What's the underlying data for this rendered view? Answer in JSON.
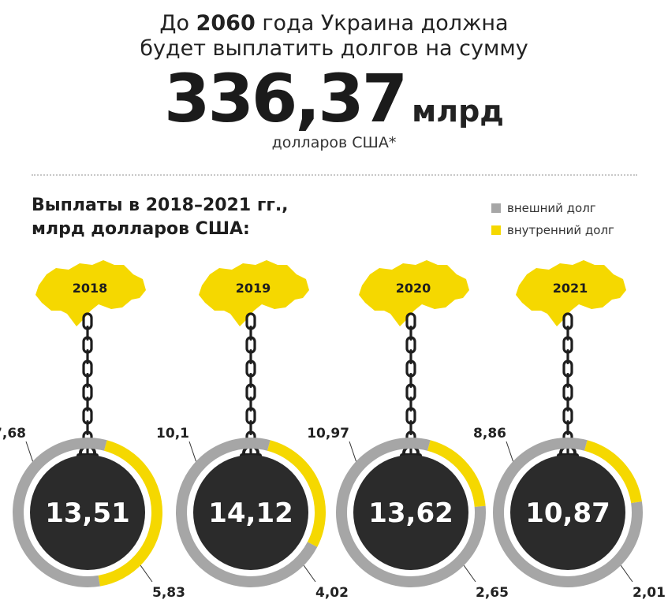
{
  "header": {
    "line1_prefix": "До ",
    "line1_year": "2060",
    "line1_suffix": " года Украина должна",
    "line2": "будет выплатить долгов на сумму",
    "big_number": "336,37",
    "big_unit": "млрд",
    "currency": "долларов США*"
  },
  "subtitle_line1": "Выплаты в 2018–2021 гг.,",
  "subtitle_line2": "млрд долларов США:",
  "legend": [
    {
      "label": "внешний долг",
      "color": "#a6a6a6"
    },
    {
      "label": "внутренний долг",
      "color": "#f5d800"
    }
  ],
  "colors": {
    "external": "#a6a6a6",
    "internal": "#f5d800",
    "ball": "#2b2b2b",
    "chain": "#1e1e1e",
    "map": "#f5d800"
  },
  "chart_data": {
    "type": "pie",
    "subtitle": "Выплаты в 2018–2021 гг., млрд долларов США:",
    "series_names": [
      "внешний долг",
      "внутренний долг"
    ],
    "years": [
      {
        "year": "2018",
        "total": "13,51",
        "external": 7.68,
        "internal": 5.83,
        "external_label": "7,68",
        "internal_label": "5,83"
      },
      {
        "year": "2019",
        "total": "14,12",
        "external": 10.1,
        "internal": 4.02,
        "external_label": "10,1",
        "internal_label": "4,02"
      },
      {
        "year": "2020",
        "total": "13,62",
        "external": 10.97,
        "internal": 2.65,
        "external_label": "10,97",
        "internal_label": "2,65"
      },
      {
        "year": "2021",
        "total": "10,87",
        "external": 8.86,
        "internal": 2.01,
        "external_label": "8,86",
        "internal_label": "2,01"
      }
    ]
  }
}
